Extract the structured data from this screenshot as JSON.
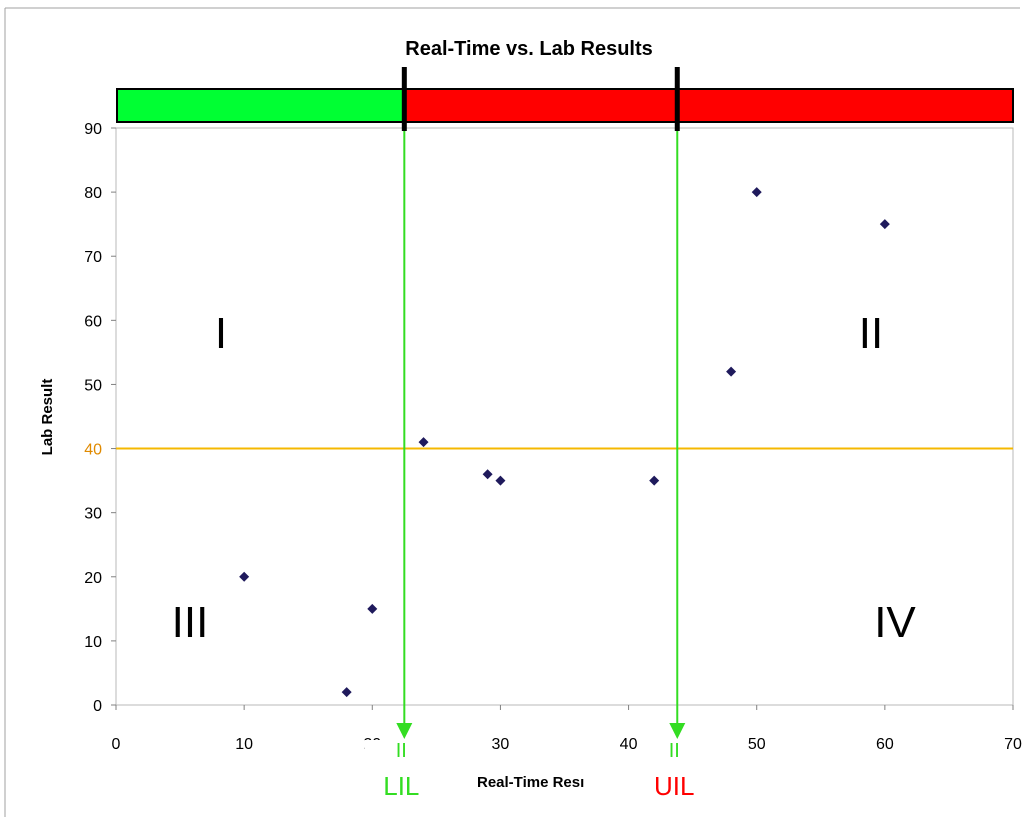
{
  "chart_data": {
    "type": "scatter",
    "title": "Real-Time vs. Lab Results",
    "xlabel": "Real-Time Resı",
    "ylabel": "Lab Result",
    "xlim": [
      0,
      70
    ],
    "ylim": [
      0,
      90
    ],
    "x_ticks": [
      "0",
      "10",
      "20",
      "30",
      "40",
      "50",
      "60",
      "70"
    ],
    "y_ticks": [
      "0",
      "10",
      "20",
      "30",
      "40",
      "50",
      "60",
      "70",
      "80",
      "90"
    ],
    "grid": false,
    "points": [
      {
        "x": 10,
        "y": 20
      },
      {
        "x": 18,
        "y": 2
      },
      {
        "x": 20,
        "y": 15
      },
      {
        "x": 24,
        "y": 41
      },
      {
        "x": 29,
        "y": 36
      },
      {
        "x": 30,
        "y": 35
      },
      {
        "x": 42,
        "y": 35
      },
      {
        "x": 48,
        "y": 52
      },
      {
        "x": 50,
        "y": 80
      },
      {
        "x": 60,
        "y": 75
      }
    ],
    "point_color": "#1f1a5c",
    "threshold": {
      "y": 40,
      "color": "#f5b800"
    },
    "limits": [
      {
        "label": "LIL",
        "x": 22.5,
        "color": "#33dd22"
      },
      {
        "label": "UIL",
        "x": 43.8,
        "color": "#ff0000"
      }
    ],
    "arrow_marks": [
      "II",
      "II"
    ],
    "limit_line_color": "#33dd22",
    "bar_colors": {
      "left": "#00ff33",
      "right": "#ff0000"
    },
    "quadrants": [
      "I",
      "II",
      "III",
      "IV"
    ]
  }
}
